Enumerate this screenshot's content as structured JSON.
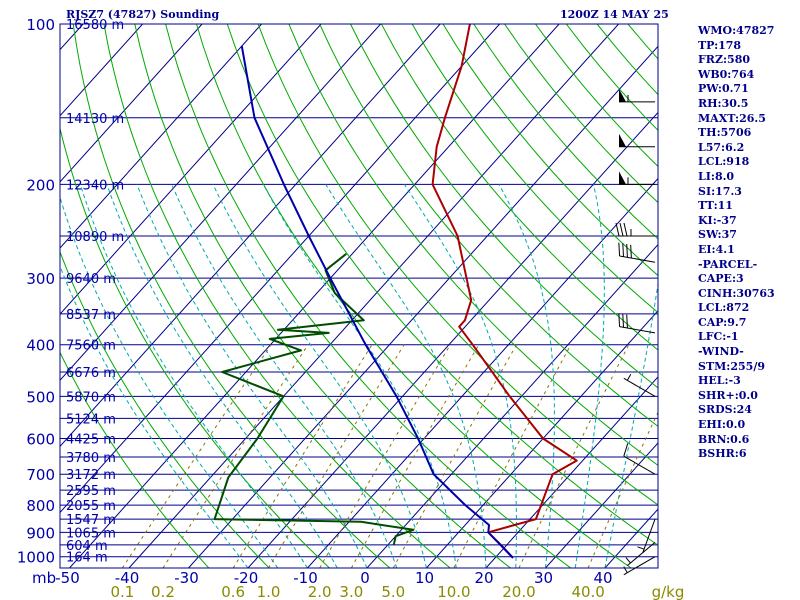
{
  "header": {
    "station": "RJSZ7 (47827) Sounding",
    "time": "1200Z 14 MAY 25"
  },
  "indices": [
    "WMO:47827",
    "TP:178",
    "FRZ:580",
    "WB0:764",
    "PW:0.71",
    "RH:30.5",
    "MAXT:26.5",
    "TH:5706",
    "L57:6.2",
    "LCL:918",
    "LI:8.0",
    "SI:17.3",
    "TT:11",
    "KI:-37",
    "SW:37",
    "EI:4.1",
    "-PARCEL-",
    "CAPE:3",
    "CINH:30763",
    "LCL:872",
    "CAP:9.7",
    "LFC:-1",
    "-WIND-",
    "STM:255/9",
    "HEL:-3",
    "SHR+:0.0",
    "SRDS:24",
    "EHI:0.0",
    "BRN:0.6",
    "BSHR:6"
  ],
  "colors": {
    "isobar": "#00008b",
    "isotherm": "#00008b",
    "dry_adiabat": "#00aa00",
    "moist_adiabat": "#00aaaa",
    "mixing_ratio": "#8b7500",
    "temperature": "#aa0000",
    "dewpoint": "#004d00",
    "parcel": "#0000aa",
    "wind": "#000000",
    "frame": "#00008b",
    "label": "#0000aa",
    "mix_label": "#8b8b00"
  },
  "chart_data": {
    "type": "line",
    "title": "RJSZ7 (47827) Sounding",
    "subtitle": "1200Z 14 MAY 25",
    "xlabel": "",
    "ylabel": "mb",
    "xlim": [
      -50,
      50
    ],
    "ylim": [
      1050,
      100
    ],
    "y_scale": "log",
    "skew": true,
    "grid": true,
    "pressure_ticks": [
      100,
      200,
      300,
      400,
      500,
      600,
      700,
      800,
      900,
      1000
    ],
    "temperature_ticks": [
      -50,
      -40,
      -30,
      -20,
      -10,
      0,
      10,
      20,
      30,
      40
    ],
    "mixing_ratio_ticks": [
      "0.1",
      "0.2",
      "0.6",
      "1.0",
      "2.0",
      "3.0",
      "5.0",
      "10.0",
      "20.0",
      "40.0"
    ],
    "mixing_ratio_unit": "g/kg",
    "height_labels": [
      {
        "p": 100,
        "label": "16580 m"
      },
      {
        "p": 150,
        "label": "14130 m"
      },
      {
        "p": 200,
        "label": "12340 m"
      },
      {
        "p": 250,
        "label": "10890 m"
      },
      {
        "p": 300,
        "label": "9640 m"
      },
      {
        "p": 350,
        "label": "8537 m"
      },
      {
        "p": 400,
        "label": "7560 m"
      },
      {
        "p": 450,
        "label": "6676 m"
      },
      {
        "p": 500,
        "label": "5870 m"
      },
      {
        "p": 550,
        "label": "5124 m"
      },
      {
        "p": 600,
        "label": "4425 m"
      },
      {
        "p": 650,
        "label": "3780 m"
      },
      {
        "p": 700,
        "label": "3172 m"
      },
      {
        "p": 750,
        "label": "2595 m"
      },
      {
        "p": 800,
        "label": "2055 m"
      },
      {
        "p": 850,
        "label": "1547 m"
      },
      {
        "p": 900,
        "label": "1065 m"
      },
      {
        "p": 950,
        "label": "604 m"
      },
      {
        "p": 1000,
        "label": "164 m"
      }
    ],
    "series": [
      {
        "name": "temperature",
        "p": [
          1005,
          950,
          925,
          900,
          850,
          700,
          660,
          600,
          500,
          400,
          370,
          360,
          330,
          250,
          200,
          170,
          150,
          120,
          100
        ],
        "values": [
          23,
          19,
          17,
          15,
          21,
          17,
          19,
          10,
          -2,
          -16,
          -21,
          -21,
          -23,
          -35,
          -47,
          -52,
          -55,
          -60,
          -65
        ]
      },
      {
        "name": "dewpoint",
        "p": [
          950,
          915,
          890,
          860,
          850,
          710,
          600,
          500,
          450,
          410,
          390,
          380,
          375,
          360,
          320,
          290,
          270
        ],
        "values": [
          1,
          0,
          2,
          -8,
          -33,
          -37,
          -38,
          -40,
          -54,
          -44,
          -51,
          -42,
          -51,
          -38,
          -47,
          -52,
          -51
        ]
      },
      {
        "name": "parcel",
        "p": [
          1005,
          900,
          872,
          800,
          700,
          600,
          500,
          400,
          300,
          250,
          200,
          150,
          110
        ],
        "values": [
          23,
          15,
          14,
          7,
          -3,
          -11,
          -21,
          -34,
          -50,
          -60,
          -72,
          -87,
          -100
        ]
      }
    ],
    "wind_barbs": [
      {
        "p": 1000,
        "dir": 240,
        "kt": 5
      },
      {
        "p": 940,
        "dir": 230,
        "kt": 5
      },
      {
        "p": 850,
        "dir": 200,
        "kt": 5
      },
      {
        "p": 700,
        "dir": 300,
        "kt": 10
      },
      {
        "p": 500,
        "dir": 300,
        "kt": 5
      },
      {
        "p": 380,
        "dir": 280,
        "kt": 30
      },
      {
        "p": 280,
        "dir": 280,
        "kt": 40
      },
      {
        "p": 250,
        "dir": 270,
        "kt": 35
      },
      {
        "p": 200,
        "dir": 270,
        "kt": 55
      },
      {
        "p": 170,
        "dir": 270,
        "kt": 50
      },
      {
        "p": 140,
        "dir": 270,
        "kt": 55
      }
    ]
  }
}
